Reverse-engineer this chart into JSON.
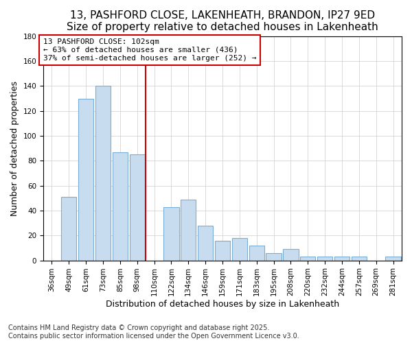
{
  "title1": "13, PASHFORD CLOSE, LAKENHEATH, BRANDON, IP27 9ED",
  "title2": "Size of property relative to detached houses in Lakenheath",
  "xlabel": "Distribution of detached houses by size in Lakenheath",
  "ylabel": "Number of detached properties",
  "categories": [
    "36sqm",
    "49sqm",
    "61sqm",
    "73sqm",
    "85sqm",
    "98sqm",
    "110sqm",
    "122sqm",
    "134sqm",
    "146sqm",
    "159sqm",
    "171sqm",
    "183sqm",
    "195sqm",
    "208sqm",
    "220sqm",
    "232sqm",
    "244sqm",
    "257sqm",
    "269sqm",
    "281sqm"
  ],
  "values": [
    0,
    51,
    130,
    140,
    87,
    85,
    0,
    43,
    49,
    28,
    16,
    18,
    12,
    6,
    9,
    3,
    3,
    3,
    3,
    0,
    3
  ],
  "bar_color": "#c8dcef",
  "bar_edge_color": "#7aadd4",
  "vline_x": 5.5,
  "vline_color": "#cc0000",
  "annotation_text": "13 PASHFORD CLOSE: 102sqm\n← 63% of detached houses are smaller (436)\n37% of semi-detached houses are larger (252) →",
  "annotation_box_color": "#ffffff",
  "annotation_box_edge_color": "#cc0000",
  "ylim": [
    0,
    180
  ],
  "yticks": [
    0,
    20,
    40,
    60,
    80,
    100,
    120,
    140,
    160,
    180
  ],
  "footnote1": "Contains HM Land Registry data © Crown copyright and database right 2025.",
  "footnote2": "Contains public sector information licensed under the Open Government Licence v3.0.",
  "background_color": "#ffffff",
  "plot_background_color": "#ffffff",
  "title_fontsize": 11,
  "subtitle_fontsize": 10,
  "axis_label_fontsize": 9,
  "tick_fontsize": 7.5,
  "annotation_fontsize": 8,
  "footnote_fontsize": 7
}
